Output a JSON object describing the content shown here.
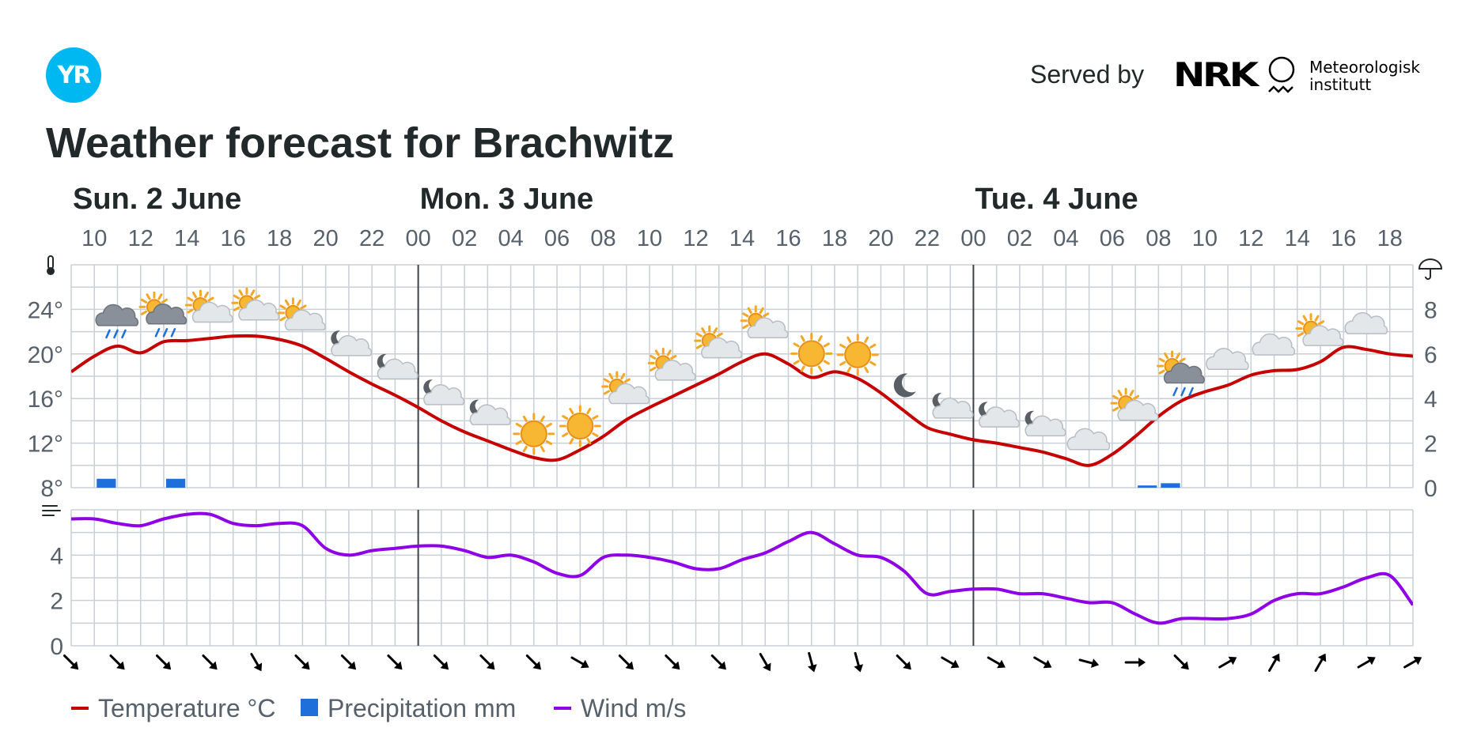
{
  "header": {
    "logo_text": "YR",
    "served_by": "Served by",
    "nrk_logo": "NRK",
    "met_logo_line1": "Meteorologisk",
    "met_logo_line2": "institutt",
    "title": "Weather forecast for Brachwitz"
  },
  "chart_data": {
    "type": "line",
    "days": [
      {
        "label": "Sun. 2 June",
        "start_index": 0
      },
      {
        "label": "Mon. 3 June",
        "start_index": 15
      },
      {
        "label": "Tue. 4 June",
        "start_index": 39
      }
    ],
    "day_boundary_indices": [
      15,
      39
    ],
    "x": [
      "09:00",
      "10:00",
      "11:00",
      "12:00",
      "13:00",
      "14:00",
      "15:00",
      "16:00",
      "17:00",
      "18:00",
      "19:00",
      "20:00",
      "21:00",
      "22:00",
      "23:00",
      "00:00",
      "01:00",
      "02:00",
      "03:00",
      "04:00",
      "05:00",
      "06:00",
      "07:00",
      "08:00",
      "09:00",
      "10:00",
      "11:00",
      "12:00",
      "13:00",
      "14:00",
      "15:00",
      "16:00",
      "17:00",
      "18:00",
      "19:00",
      "20:00",
      "21:00",
      "22:00",
      "23:00",
      "00:00",
      "01:00",
      "02:00",
      "03:00",
      "04:00",
      "05:00",
      "06:00",
      "07:00",
      "08:00",
      "09:00",
      "10:00",
      "11:00",
      "12:00",
      "13:00",
      "14:00",
      "15:00",
      "16:00",
      "17:00",
      "18:00",
      "19:00"
    ],
    "hour_tick_labels": [
      "10",
      "12",
      "14",
      "16",
      "18",
      "20",
      "22",
      "00",
      "02",
      "04",
      "06",
      "08",
      "10",
      "12",
      "14",
      "16",
      "18",
      "20",
      "22",
      "00",
      "02",
      "04",
      "06",
      "08",
      "10",
      "12",
      "14",
      "16",
      "18"
    ],
    "temp_axis": {
      "ticks": [
        "24°",
        "20°",
        "16°",
        "12°",
        "8°"
      ],
      "values": [
        24,
        20,
        16,
        12,
        8
      ],
      "ylim": [
        8,
        28
      ]
    },
    "precip_axis": {
      "ticks": [
        "8",
        "6",
        "4",
        "2",
        "0"
      ],
      "values": [
        8,
        6,
        4,
        2,
        0
      ],
      "ylim": [
        0,
        10
      ]
    },
    "wind_axis": {
      "ticks": [
        "4",
        "2",
        "0"
      ],
      "values": [
        4,
        2,
        0
      ],
      "ylim": [
        0,
        6
      ]
    },
    "series": [
      {
        "name": "Temperature °C",
        "color": "#c60000",
        "values": [
          18.4,
          19.8,
          20.7,
          20.1,
          21.1,
          21.2,
          21.4,
          21.6,
          21.6,
          21.3,
          20.7,
          19.6,
          18.4,
          17.3,
          16.3,
          15.2,
          14.0,
          13.0,
          12.2,
          11.4,
          10.7,
          10.5,
          11.4,
          12.6,
          14.1,
          15.2,
          16.2,
          17.2,
          18.2,
          19.3,
          20.0,
          19.1,
          17.9,
          18.4,
          17.8,
          16.5,
          14.9,
          13.4,
          12.8,
          12.3,
          12.0,
          11.6,
          11.2,
          10.6,
          10.0,
          11.0,
          12.6,
          14.4,
          15.8,
          16.6,
          17.2,
          18.1,
          18.5,
          18.6,
          19.3,
          20.6,
          20.4,
          20.0,
          19.8
        ]
      },
      {
        "name": "Precipitation mm",
        "color": "#1e6fd9",
        "values": [
          0,
          0,
          0.4,
          0,
          0,
          0.4,
          0,
          0,
          0,
          0,
          0,
          0,
          0,
          0,
          0,
          0,
          0,
          0,
          0,
          0,
          0,
          0,
          0,
          0,
          0,
          0,
          0,
          0,
          0,
          0,
          0,
          0,
          0,
          0,
          0,
          0,
          0,
          0,
          0,
          0,
          0,
          0,
          0,
          0,
          0,
          0,
          0,
          0.1,
          0.2,
          0,
          0,
          0,
          0,
          0,
          0,
          0,
          0,
          0,
          0
        ]
      },
      {
        "name": "Wind m/s",
        "color": "#8f00e6",
        "values": [
          5.6,
          5.6,
          5.4,
          5.3,
          5.6,
          5.8,
          5.8,
          5.4,
          5.3,
          5.4,
          5.3,
          4.3,
          4.0,
          4.2,
          4.3,
          4.4,
          4.4,
          4.2,
          3.9,
          4.0,
          3.7,
          3.2,
          3.1,
          3.9,
          4.0,
          3.9,
          3.7,
          3.4,
          3.4,
          3.8,
          4.1,
          4.6,
          5.0,
          4.5,
          4.0,
          3.9,
          3.3,
          2.3,
          2.4,
          2.5,
          2.5,
          2.3,
          2.3,
          2.1,
          1.9,
          1.9,
          1.4,
          1.0,
          1.2,
          1.2,
          1.2,
          1.4,
          2.0,
          2.3,
          2.3,
          2.6,
          3.0,
          3.1,
          1.8
        ]
      }
    ],
    "weather_icons": [
      {
        "index": 2,
        "icon": "cloud-rain-icon"
      },
      {
        "index": 4,
        "icon": "partly-cloudy-rain-icon"
      },
      {
        "index": 6,
        "icon": "partly-cloudy-day-icon"
      },
      {
        "index": 8,
        "icon": "partly-cloudy-day-icon"
      },
      {
        "index": 10,
        "icon": "partly-cloudy-day-icon"
      },
      {
        "index": 12,
        "icon": "partly-cloudy-night-icon"
      },
      {
        "index": 14,
        "icon": "partly-cloudy-night-icon"
      },
      {
        "index": 16,
        "icon": "partly-cloudy-night-icon"
      },
      {
        "index": 18,
        "icon": "partly-cloudy-night-icon"
      },
      {
        "index": 20,
        "icon": "sun-icon"
      },
      {
        "index": 22,
        "icon": "sun-icon"
      },
      {
        "index": 24,
        "icon": "partly-cloudy-day-icon"
      },
      {
        "index": 26,
        "icon": "partly-cloudy-day-icon"
      },
      {
        "index": 28,
        "icon": "partly-cloudy-day-icon"
      },
      {
        "index": 30,
        "icon": "partly-cloudy-day-icon"
      },
      {
        "index": 32,
        "icon": "sun-icon"
      },
      {
        "index": 34,
        "icon": "sun-icon"
      },
      {
        "index": 36,
        "icon": "moon-icon"
      },
      {
        "index": 38,
        "icon": "partly-cloudy-night-icon"
      },
      {
        "index": 40,
        "icon": "partly-cloudy-night-icon"
      },
      {
        "index": 42,
        "icon": "partly-cloudy-night-icon"
      },
      {
        "index": 44,
        "icon": "cloud-icon"
      },
      {
        "index": 46,
        "icon": "partly-cloudy-day-icon"
      },
      {
        "index": 48,
        "icon": "partly-cloudy-rain-icon"
      },
      {
        "index": 50,
        "icon": "cloud-icon"
      },
      {
        "index": 52,
        "icon": "cloud-icon"
      },
      {
        "index": 54,
        "icon": "partly-cloudy-day-icon"
      },
      {
        "index": 56,
        "icon": "cloud-icon"
      }
    ],
    "wind_directions_deg": [
      135,
      135,
      135,
      135,
      150,
      135,
      135,
      135,
      135,
      135,
      135,
      120,
      135,
      135,
      135,
      150,
      165,
      165,
      135,
      120,
      120,
      120,
      105,
      90,
      135,
      60,
      30,
      30,
      60,
      60
    ],
    "legend": [
      {
        "label": "Temperature °C",
        "color": "#c60000",
        "shape": "line"
      },
      {
        "label": "Precipitation mm",
        "color": "#1e6fd9",
        "shape": "square"
      },
      {
        "label": "Wind m/s",
        "color": "#8f00e6",
        "shape": "line"
      }
    ],
    "legend_placement": "bottom-left",
    "grid": true,
    "axis_icons": {
      "temperature": "thermometer-icon",
      "precipitation": "umbrella-icon",
      "wind": "wind-icon"
    }
  }
}
